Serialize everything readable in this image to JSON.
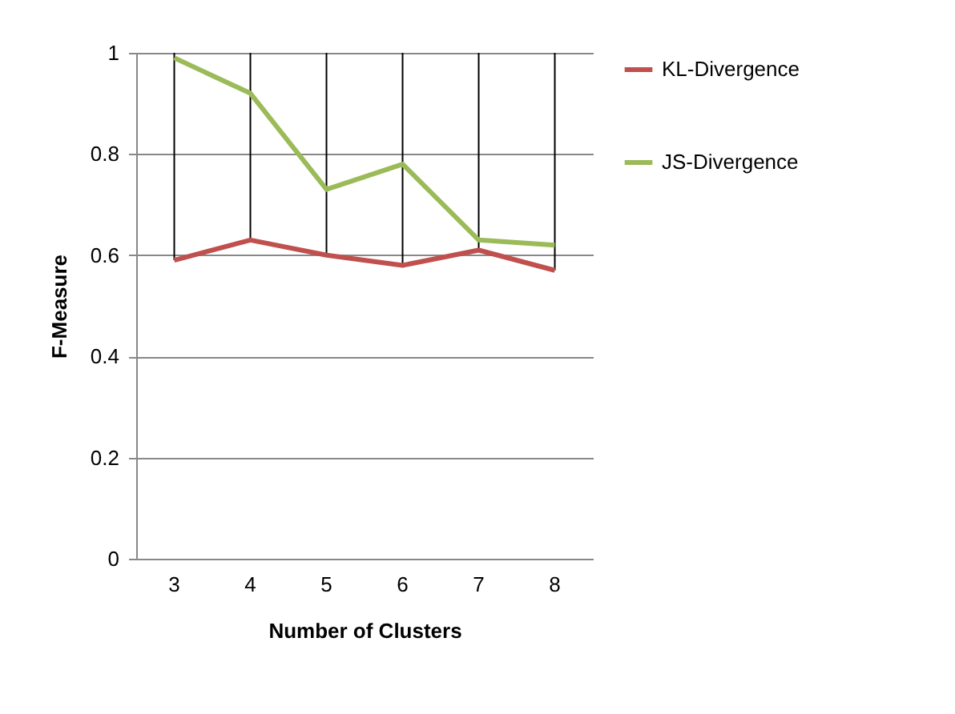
{
  "chart_data": {
    "type": "line",
    "xlabel": "Number of Clusters",
    "ylabel": "F-Measure",
    "categories": [
      "3",
      "4",
      "5",
      "6",
      "7",
      "8"
    ],
    "series": [
      {
        "name": "KL-Divergence",
        "color": "#c0504d",
        "values": [
          0.59,
          0.63,
          0.6,
          0.58,
          0.61,
          0.57
        ],
        "errors": [
          [
            0.59,
            1
          ],
          [
            0.63,
            1
          ],
          [
            0.6,
            1
          ],
          [
            0.58,
            1
          ],
          [
            0.61,
            1
          ],
          [
            0.57,
            1
          ]
        ]
      },
      {
        "name": "JS-Divergence",
        "color": "#9bbb59",
        "values": [
          0.99,
          0.92,
          0.73,
          0.78,
          0.63,
          0.62
        ]
      }
    ],
    "ylim": [
      0,
      1
    ],
    "yticks": [
      0,
      0.2,
      0.4,
      0.6,
      0.8,
      1
    ],
    "grid": "y",
    "legend": "right",
    "marker": "none",
    "line_style": "solid"
  }
}
